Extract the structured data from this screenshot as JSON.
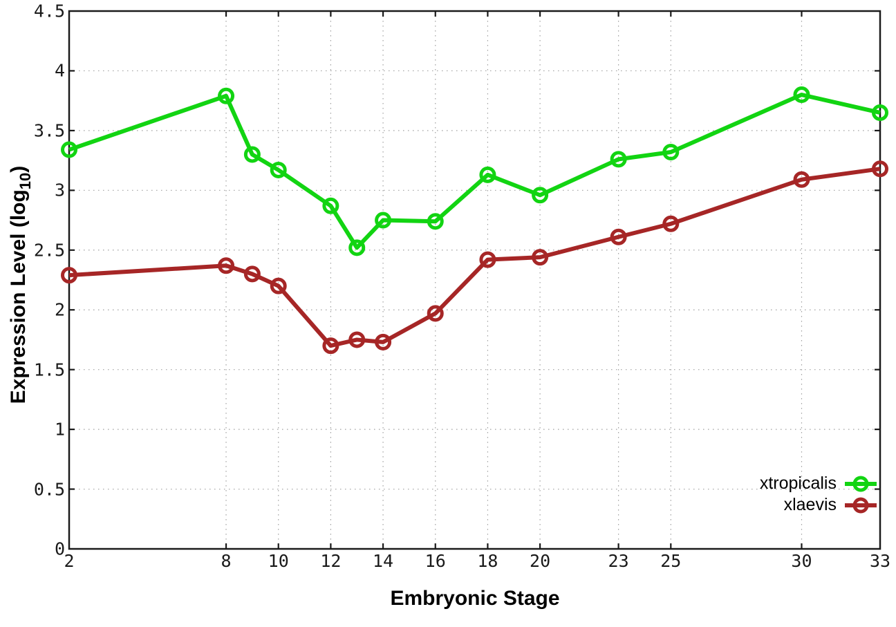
{
  "chart_data": {
    "type": "line",
    "title": "",
    "x": [
      2,
      8,
      9,
      10,
      12,
      13,
      14,
      16,
      18,
      20,
      23,
      25,
      30,
      33
    ],
    "series": [
      {
        "name": "xtropicalis",
        "color": "#12d412",
        "values": [
          3.34,
          3.79,
          3.3,
          3.17,
          2.87,
          2.52,
          2.75,
          2.74,
          3.13,
          2.96,
          3.26,
          3.32,
          3.8,
          3.65
        ]
      },
      {
        "name": "xlaevis",
        "color": "#a62626",
        "values": [
          2.29,
          2.37,
          2.3,
          2.2,
          1.7,
          1.75,
          1.73,
          1.97,
          2.42,
          2.44,
          2.61,
          2.72,
          3.09,
          3.18
        ]
      }
    ],
    "xlabel": "Embryonic Stage",
    "ylabel": "Expression Level (log10)",
    "ylabel_parts": {
      "main": "Expression Level (log",
      "sub": "10",
      "close": ")"
    },
    "xlim": [
      2,
      33
    ],
    "ylim": [
      0,
      4.5
    ],
    "x_ticks": [
      2,
      8,
      10,
      12,
      14,
      16,
      18,
      20,
      23,
      25,
      30,
      33
    ],
    "x_tick_labels": [
      "2",
      "8",
      "10",
      "12",
      "14",
      "16",
      "18",
      "20",
      "23",
      "25",
      "30",
      "33"
    ],
    "y_ticks": [
      0,
      0.5,
      1,
      1.5,
      2,
      2.5,
      3,
      3.5,
      4,
      4.5
    ],
    "y_tick_labels": [
      "0",
      "0.5",
      "1",
      "1.5",
      "2",
      "2.5",
      "3",
      "3.5",
      "4",
      "4.5"
    ],
    "grid": true,
    "legend_position": "inside bottom-right",
    "marker": "open-circle"
  },
  "colors": {
    "background": "#ffffff",
    "border": "#1a1a1a",
    "grid": "#9f9f9f",
    "tick_text": "#1a1a1a"
  }
}
